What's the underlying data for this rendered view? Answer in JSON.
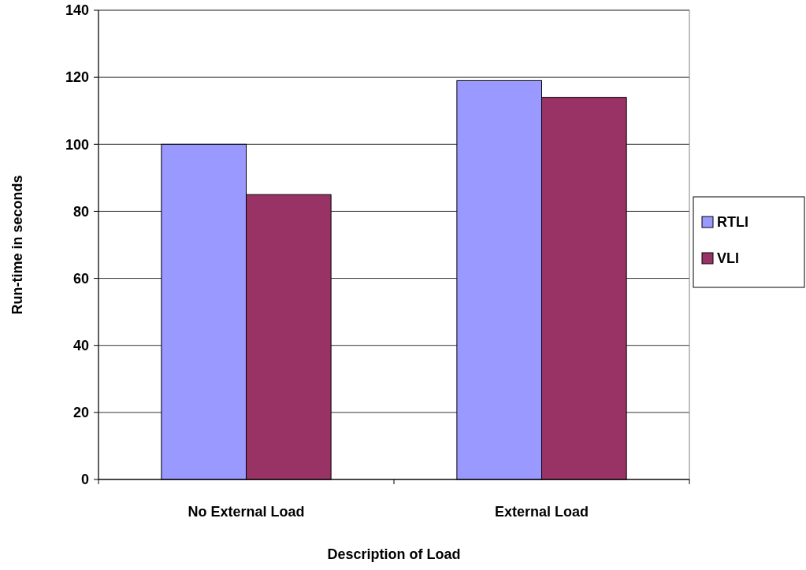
{
  "chart_data": {
    "type": "bar",
    "xlabel": "Description of Load",
    "ylabel": "Run-time in seconds",
    "categories": [
      "No External Load",
      "External Load"
    ],
    "series": [
      {
        "name": "RTLI",
        "color": "#9999ff",
        "values": [
          100,
          119
        ]
      },
      {
        "name": "VLI",
        "color": "#993366",
        "values": [
          85,
          114
        ]
      }
    ],
    "ylim": [
      0,
      140
    ],
    "yticks": [
      0,
      20,
      40,
      60,
      80,
      100,
      120,
      140
    ],
    "grid": "y",
    "legend": "right"
  }
}
